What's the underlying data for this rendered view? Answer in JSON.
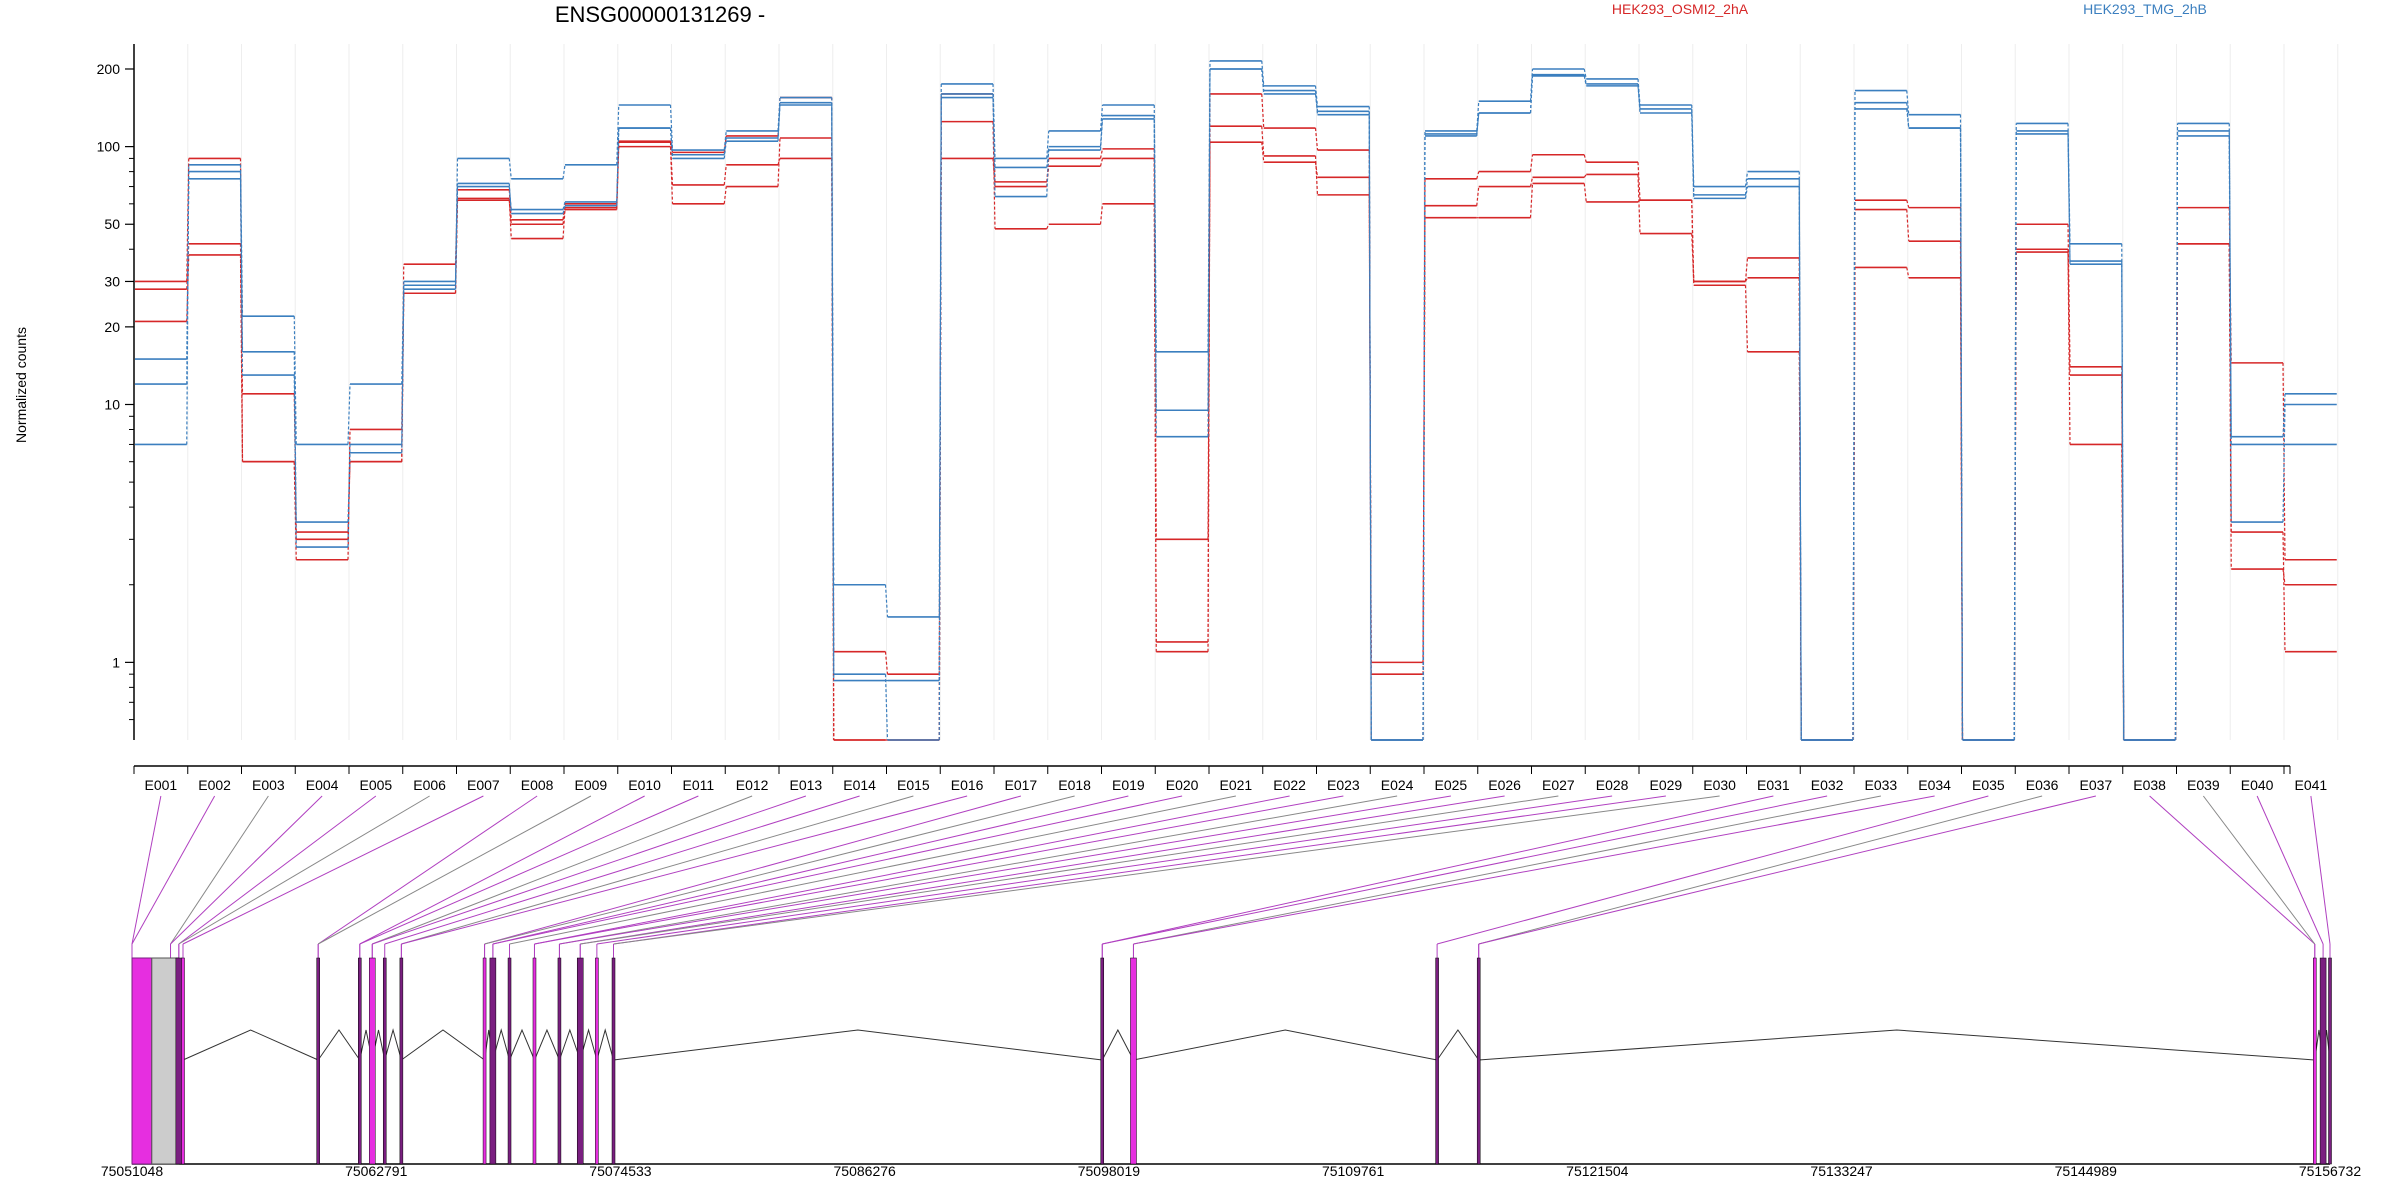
{
  "title": "ENSG00000131269 -",
  "legend": [
    {
      "name": "HEK293_OSMI2_2hA",
      "color": "#d62728"
    },
    {
      "name": "HEK293_TMG_2hB",
      "color": "#3b7fbf"
    }
  ],
  "link_colors": {
    "magenta": "#b040c0",
    "gray": "#888888",
    "exon_fill": "#e62ee0",
    "exon_dark": "#7a1f80"
  },
  "chart_data": {
    "type": "line",
    "ylabel": "Normalized counts",
    "y_scale": "log",
    "ylim": [
      0.5,
      250
    ],
    "yticks": [
      1,
      10,
      20,
      30,
      50,
      100,
      200
    ],
    "exons": [
      "E001",
      "E002",
      "E003",
      "E004",
      "E005",
      "E006",
      "E007",
      "E008",
      "E009",
      "E010",
      "E011",
      "E012",
      "E013",
      "E014",
      "E015",
      "E016",
      "E017",
      "E018",
      "E019",
      "E020",
      "E021",
      "E022",
      "E023",
      "E024",
      "E025",
      "E026",
      "E027",
      "E028",
      "E029",
      "E030",
      "E031",
      "E032",
      "E033",
      "E034",
      "E035",
      "E036",
      "E037",
      "E038",
      "E039",
      "E040",
      "E041"
    ],
    "series": [
      {
        "group": "red",
        "values": [
          30,
          90,
          6,
          2.5,
          8,
          35,
          68,
          52,
          60,
          105,
          95,
          110,
          155,
          1.1,
          0.9,
          160,
          73,
          90,
          98,
          1.2,
          160,
          118,
          97,
          1.0,
          75,
          80,
          93,
          87,
          62,
          30,
          37,
          0.5,
          62,
          58,
          0.5,
          50,
          14,
          0.5,
          58,
          14.5,
          2.5
        ]
      },
      {
        "group": "red",
        "values": [
          28,
          42,
          11,
          3.2,
          6,
          27,
          63,
          44,
          57,
          100,
          60,
          70,
          108,
          0.5,
          0.5,
          125,
          48,
          50,
          60,
          1.1,
          120,
          92,
          65,
          0.9,
          59,
          70,
          76,
          78,
          46,
          30,
          31,
          0.5,
          57,
          43,
          0.5,
          40,
          13,
          0.5,
          42,
          3.2,
          1.1
        ]
      },
      {
        "group": "red",
        "values": [
          21,
          38,
          6,
          3.0,
          6,
          27,
          62,
          50,
          58,
          104,
          71,
          85,
          90,
          0.5,
          0.5,
          90,
          70,
          84,
          90,
          3.0,
          104,
          87,
          76,
          0.5,
          53,
          53,
          72,
          61,
          62,
          29,
          16,
          0.5,
          34,
          31,
          0.5,
          39,
          7,
          0.5,
          42,
          2.3,
          2.0
        ]
      },
      {
        "group": "blue",
        "values": [
          7,
          85,
          22,
          7,
          12,
          30,
          90,
          75,
          85,
          145,
          97,
          115,
          155,
          2.0,
          1.5,
          175,
          90,
          115,
          145,
          16,
          215,
          172,
          143,
          0.5,
          115,
          150,
          200,
          183,
          145,
          70,
          80,
          0.5,
          165,
          133,
          0.5,
          123,
          42,
          0.5,
          123,
          7.5,
          11
        ]
      },
      {
        "group": "blue",
        "values": [
          12,
          80,
          16,
          3.5,
          6.5,
          29,
          72,
          55,
          59,
          118,
          93,
          108,
          148,
          0.9,
          0.5,
          155,
          64,
          100,
          132,
          7.5,
          200,
          165,
          133,
          0.5,
          110,
          135,
          190,
          175,
          135,
          65,
          75,
          0.5,
          148,
          118,
          0.5,
          115,
          35,
          0.5,
          110,
          3.5,
          10
        ]
      },
      {
        "group": "blue",
        "values": [
          15,
          75,
          13,
          2.8,
          7,
          28,
          70,
          57,
          61,
          118,
          90,
          105,
          145,
          0.85,
          0.85,
          160,
          83,
          97,
          128,
          9.5,
          200,
          160,
          137,
          0.5,
          112,
          135,
          188,
          172,
          140,
          63,
          70,
          0.5,
          140,
          118,
          0.5,
          112,
          36,
          0.5,
          115,
          7.0,
          7.0
        ]
      }
    ],
    "genomic_axis": {
      "ticks": [
        "75051048",
        "75062791",
        "75074533",
        "75086276",
        "75098019",
        "75109761",
        "75121504",
        "75133247",
        "75144989",
        "75156732"
      ]
    }
  }
}
